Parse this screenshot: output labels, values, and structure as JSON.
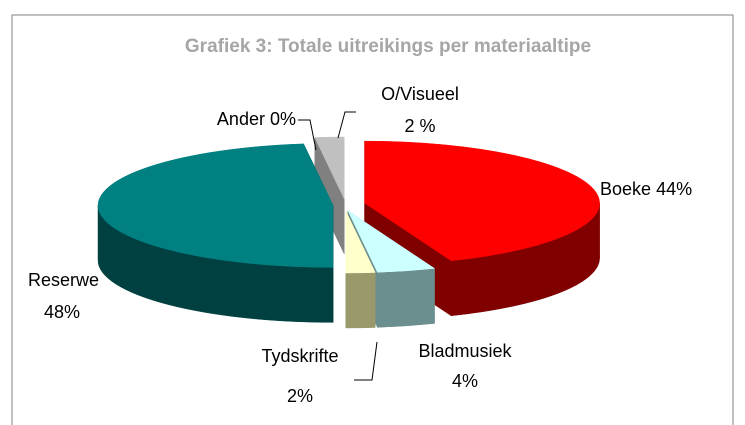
{
  "chart_data": {
    "type": "pie",
    "title": "Grafiek 3: Totale uitreikings per materiaaltipe",
    "categories": [
      "Boeke",
      "Bladmusiek",
      "Tydskrifte",
      "Reserwe",
      "Ander",
      "O/Visueel"
    ],
    "values": [
      44,
      4,
      2,
      48,
      0,
      2
    ],
    "value_labels": [
      "44%",
      "4%",
      "2%",
      "48%",
      "0%",
      "2 %"
    ],
    "colors": [
      "#ff0000",
      "#ccffff",
      "#ffffcc",
      "#008080",
      "#330066",
      "#c0c0c0"
    ],
    "side_colors": [
      "#800000",
      "#6b8e8e",
      "#99996b",
      "#004040",
      "#1a0033",
      "#808080"
    ]
  }
}
